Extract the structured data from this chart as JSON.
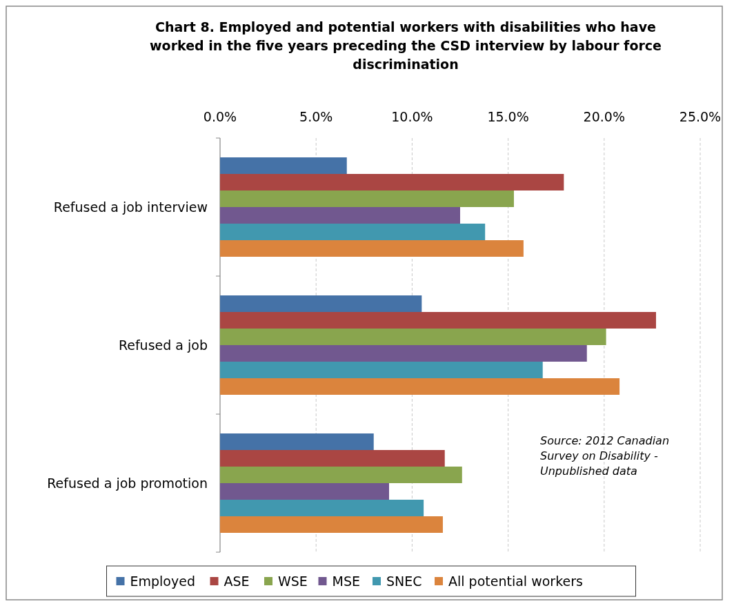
{
  "chart_data": {
    "type": "bar",
    "orientation": "horizontal",
    "title": "Chart 8. Employed and potential workers with disabilities who have worked in the five years preceding the CSD interview by labour force discrimination",
    "categories": [
      "Refused a job interview",
      "Refused a job",
      "Refused a job promotion"
    ],
    "series": [
      {
        "name": "Employed",
        "color": "#4572a7",
        "values": [
          6.6,
          10.5,
          8.0
        ]
      },
      {
        "name": "ASE",
        "color": "#aa4643",
        "values": [
          17.9,
          22.7,
          11.7
        ]
      },
      {
        "name": "WSE",
        "color": "#89a54e",
        "values": [
          15.3,
          20.1,
          12.6
        ]
      },
      {
        "name": "MSE",
        "color": "#71588f",
        "values": [
          12.5,
          19.1,
          8.8
        ]
      },
      {
        "name": "SNEC",
        "color": "#4198af",
        "values": [
          13.8,
          16.8,
          10.6
        ]
      },
      {
        "name": "All potential workers",
        "color": "#db843d",
        "values": [
          15.8,
          20.8,
          11.6
        ]
      }
    ],
    "xlim": [
      0,
      25
    ],
    "xticks": [
      {
        "value": 0,
        "label": "0.0%"
      },
      {
        "value": 5,
        "label": "5.0%"
      },
      {
        "value": 10,
        "label": "10.0%"
      },
      {
        "value": 15,
        "label": "15.0%"
      },
      {
        "value": 20,
        "label": "20.0%"
      },
      {
        "value": 25,
        "label": "25.0%"
      }
    ],
    "grid": "x",
    "legend": "bottom",
    "annotations": [
      "Source: 2012 Canadian Survey on Disability - Unpublished data"
    ]
  }
}
